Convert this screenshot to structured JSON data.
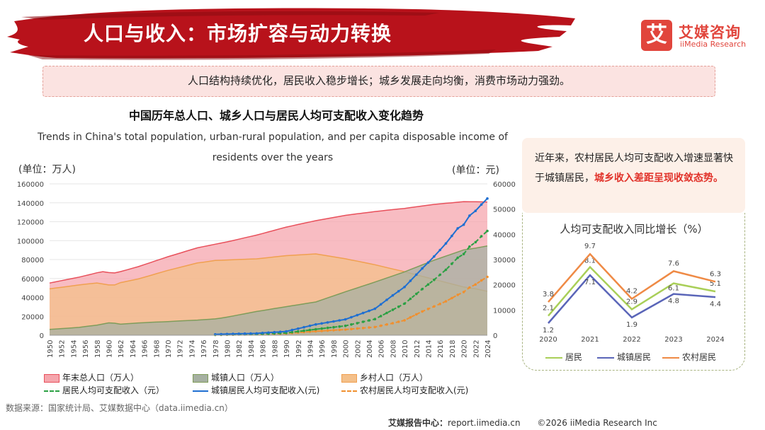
{
  "header": {
    "title": "人口与收入：市场扩容与动力转换",
    "logo_mark": "艾",
    "logo_cn": "艾媒咨询",
    "logo_en": "iiMedia Research"
  },
  "banner": "人口结构持续优化，居民收入稳步增长；城乡发展走向均衡，消费市场动力强劲。",
  "note": {
    "text": "近年来，农村居民人均可支配收入增速显著快于城镇居民，",
    "highlight": "城乡收入差距呈现收敛态势。"
  },
  "source": "数据来源：国家统计局、艾媒数据中心（data.iimedia.cn）",
  "footer": {
    "label": "艾媒报告中心：",
    "url": "report.iimedia.cn",
    "copyright": "©2026  iiMedia Research  Inc"
  },
  "colors": {
    "brand_red": "#e1453c",
    "total_pop": "#e8505b",
    "urban_pop": "#7f9c5a",
    "rural_pop": "#f0a050",
    "resident_income": "#2aa043",
    "urban_income": "#1f6fd1",
    "rural_income": "#f0902f",
    "small_resident": "#a9cf58",
    "small_urban": "#5a65b8",
    "small_rural": "#ef8a45"
  },
  "chart_data": [
    {
      "type": "area",
      "title": "中国历年总人口、城乡人口与居民人均可支配收入变化趋势",
      "subtitle": "Trends in China's total population, urban-rural population, and per capita disposable income of residents over the years",
      "y_left_label": "(单位：万人)",
      "y_right_label": "(单位：元)",
      "ylim_left": [
        0,
        160000
      ],
      "ylim_right": [
        0,
        60000
      ],
      "y_left_ticks": [
        "0",
        "20000",
        "40000",
        "60000",
        "80000",
        "100000",
        "120000",
        "140000",
        "160000"
      ],
      "y_right_ticks": [
        "0",
        "10000",
        "20000",
        "30000",
        "40000",
        "50000",
        "60000"
      ],
      "x_start": 1950,
      "x_end": 2024,
      "x_tick_step": 2,
      "series": [
        {
          "name": "年末总人口（万人）",
          "kind": "area",
          "axis": "left",
          "x": [
            1950,
            1955,
            1958,
            1959,
            1960,
            1961,
            1962,
            1965,
            1970,
            1975,
            1978,
            1980,
            1985,
            1990,
            1995,
            2000,
            2005,
            2010,
            2015,
            2020,
            2022,
            2024
          ],
          "values": [
            55196,
            61465,
            65994,
            67207,
            66207,
            65859,
            67295,
            72538,
            82992,
            92420,
            96259,
            98705,
            105851,
            114333,
            121121,
            126743,
            130756,
            134091,
            138326,
            141212,
            141175,
            140828
          ]
        },
        {
          "name": "城镇人口（万人）",
          "kind": "area",
          "axis": "left",
          "x": [
            1950,
            1955,
            1958,
            1960,
            1961,
            1962,
            1965,
            1970,
            1975,
            1978,
            1980,
            1985,
            1990,
            1995,
            2000,
            2005,
            2010,
            2015,
            2020,
            2022,
            2024
          ],
          "values": [
            6169,
            8285,
            10721,
            13073,
            12707,
            11659,
            13045,
            14424,
            16030,
            17245,
            19140,
            25094,
            30195,
            35174,
            45906,
            56212,
            66978,
            79302,
            90220,
            92071,
            94350
          ]
        },
        {
          "name": "乡村人口（万人）",
          "kind": "area",
          "axis": "left",
          "x": [
            1950,
            1955,
            1958,
            1960,
            1961,
            1962,
            1965,
            1970,
            1975,
            1978,
            1980,
            1985,
            1990,
            1995,
            2000,
            2005,
            2010,
            2015,
            2020,
            2022,
            2024
          ],
          "values": [
            49027,
            53180,
            55273,
            53134,
            53152,
            55636,
            59493,
            68568,
            76390,
            79014,
            79565,
            80757,
            84138,
            85947,
            80837,
            74544,
            67113,
            59024,
            50992,
            49104,
            46478
          ]
        },
        {
          "name": "居民人均可支配收入（元）",
          "kind": "line",
          "axis": "right",
          "x": [
            1978,
            1985,
            1990,
            1995,
            2000,
            2005,
            2010,
            2013,
            2015,
            2017,
            2019,
            2020,
            2021,
            2022,
            2023,
            2024
          ],
          "values": [
            171,
            479,
            904,
            2363,
            3721,
            6385,
            12520,
            18311,
            21966,
            25974,
            30733,
            32189,
            35128,
            36883,
            39218,
            41314
          ]
        },
        {
          "name": "城镇居民人均可支配收入(元)",
          "kind": "line",
          "axis": "right",
          "x": [
            1978,
            1980,
            1985,
            1990,
            1995,
            2000,
            2005,
            2008,
            2010,
            2013,
            2015,
            2017,
            2019,
            2020,
            2021,
            2022,
            2023,
            2024
          ],
          "values": [
            343,
            478,
            739,
            1510,
            4283,
            6280,
            10493,
            15781,
            19109,
            26467,
            31195,
            36396,
            42359,
            43834,
            47412,
            49283,
            51821,
            54188
          ]
        },
        {
          "name": "农村居民人均可支配收入(元)",
          "kind": "line",
          "axis": "right",
          "x": [
            1978,
            1980,
            1985,
            1990,
            1995,
            2000,
            2005,
            2008,
            2010,
            2013,
            2015,
            2017,
            2019,
            2020,
            2021,
            2022,
            2023,
            2024
          ],
          "values": [
            134,
            191,
            398,
            686,
            1578,
            2253,
            3255,
            4761,
            5919,
            9430,
            11422,
            13432,
            16021,
            17131,
            18931,
            20133,
            21691,
            23119
          ]
        }
      ]
    },
    {
      "type": "line",
      "title": "人均可支配收入同比增长（%）",
      "categories": [
        "2020",
        "2021",
        "2022",
        "2023",
        "2024"
      ],
      "series": [
        {
          "name": "居民",
          "values": [
            2.1,
            8.1,
            2.9,
            6.1,
            5.1
          ]
        },
        {
          "name": "城镇居民",
          "values": [
            1.2,
            7.1,
            1.9,
            4.8,
            4.4
          ]
        },
        {
          "name": "农村居民",
          "values": [
            3.8,
            9.7,
            4.2,
            7.6,
            6.3
          ]
        }
      ]
    }
  ]
}
